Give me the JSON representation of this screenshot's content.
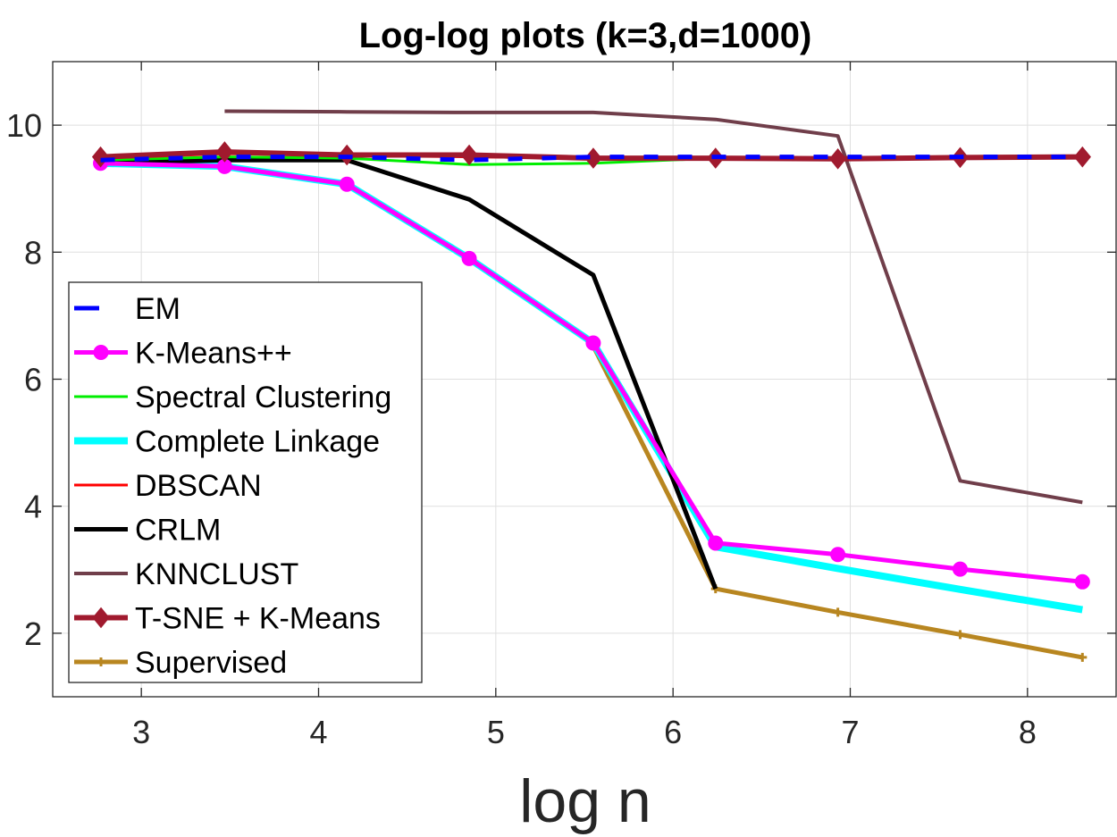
{
  "chart_data": {
    "type": "line",
    "title": "Log-log plots (k=3,d=1000)",
    "xlabel": "log n",
    "ylabel": "",
    "xlim": [
      2.5,
      8.5
    ],
    "ylim": [
      1,
      11
    ],
    "xticks": [
      3,
      4,
      5,
      6,
      7,
      8
    ],
    "yticks": [
      2,
      4,
      6,
      8,
      10
    ],
    "xtick_labels": [
      "3",
      "4",
      "5",
      "6",
      "7",
      "8"
    ],
    "ytick_labels": [
      "2",
      "4",
      "6",
      "8",
      "10"
    ],
    "grid": true,
    "legend_position": "lower-left",
    "series": [
      {
        "name": "EM",
        "color": "#0000ff",
        "dash": "dashed",
        "marker": "none",
        "x": [
          2.77,
          3.47,
          4.16,
          4.85,
          5.55,
          6.24,
          6.93,
          7.62,
          8.31
        ],
        "y": [
          9.45,
          9.5,
          9.5,
          9.45,
          9.5,
          9.5,
          9.5,
          9.5,
          9.5
        ]
      },
      {
        "name": "K-Means++",
        "color": "#ff00ff",
        "dash": "solid",
        "marker": "circle",
        "x": [
          2.77,
          3.47,
          4.16,
          4.85,
          5.55,
          6.24,
          6.93,
          7.62,
          8.31
        ],
        "y": [
          9.4,
          9.35,
          9.07,
          7.9,
          6.57,
          3.42,
          3.24,
          3.01,
          2.81
        ]
      },
      {
        "name": "Spectral Clustering",
        "color": "#00ee00",
        "dash": "solid",
        "marker": "none",
        "x": [
          2.77,
          3.47,
          4.16,
          4.85,
          5.55,
          6.24,
          6.93,
          7.62,
          8.31
        ],
        "y": [
          9.45,
          9.5,
          9.48,
          9.38,
          9.4,
          9.48,
          9.48,
          9.48,
          9.5
        ]
      },
      {
        "name": "Complete Linkage",
        "color": "#00ffff",
        "dash": "solid",
        "marker": "none",
        "x": [
          2.77,
          3.47,
          4.16,
          4.85,
          5.55,
          6.24,
          6.93,
          7.62,
          8.31
        ],
        "y": [
          9.4,
          9.35,
          9.07,
          7.9,
          6.57,
          3.36,
          3.02,
          2.69,
          2.37
        ]
      },
      {
        "name": "DBSCAN",
        "color": "#ff0000",
        "dash": "solid",
        "marker": "none",
        "x": [
          2.77,
          3.47,
          4.16,
          4.85,
          5.55,
          6.24,
          6.93,
          7.62,
          8.31
        ],
        "y": [
          9.48,
          9.55,
          9.52,
          9.5,
          9.48,
          9.48,
          9.48,
          9.48,
          9.5
        ]
      },
      {
        "name": "CRLM",
        "color": "#000000",
        "dash": "solid",
        "marker": "none",
        "x": [
          2.77,
          3.47,
          4.16,
          4.85,
          5.55,
          6.24
        ],
        "y": [
          9.4,
          9.45,
          9.45,
          8.83,
          7.64,
          2.7
        ]
      },
      {
        "name": "KNNCLUST",
        "color": "#703e4a",
        "dash": "solid",
        "marker": "none",
        "x": [
          3.47,
          4.16,
          4.85,
          5.55,
          6.24,
          6.93,
          7.62,
          8.31
        ],
        "y": [
          10.22,
          10.21,
          10.2,
          10.2,
          10.09,
          9.83,
          4.4,
          4.06
        ]
      },
      {
        "name": "T-SNE + K-Means",
        "color": "#a01a2e",
        "dash": "solid",
        "marker": "diamond",
        "x": [
          2.77,
          3.47,
          4.16,
          4.85,
          5.55,
          6.24,
          6.93,
          7.62,
          8.31
        ],
        "y": [
          9.5,
          9.58,
          9.53,
          9.53,
          9.48,
          9.48,
          9.47,
          9.49,
          9.5
        ]
      },
      {
        "name": "Supervised",
        "color": "#b88620",
        "dash": "solid",
        "marker": "plus",
        "x": [
          5.55,
          6.24,
          6.93,
          7.62,
          8.31
        ],
        "y": [
          6.52,
          2.7,
          2.33,
          1.98,
          1.62
        ]
      }
    ]
  }
}
